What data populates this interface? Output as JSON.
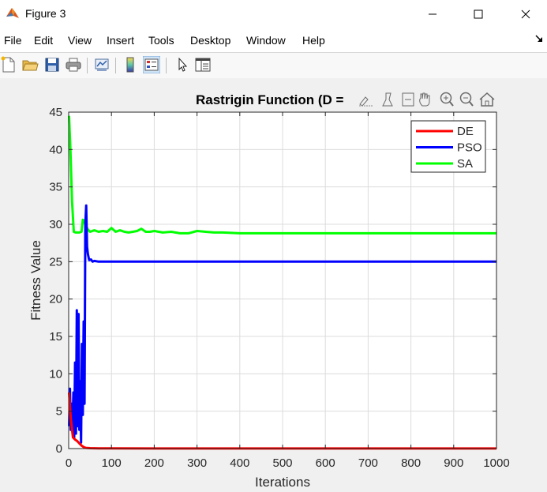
{
  "window": {
    "title": "Figure 3",
    "menu": [
      "File",
      "Edit",
      "View",
      "Insert",
      "Tools",
      "Desktop",
      "Window",
      "Help"
    ]
  },
  "toolbar": {
    "buttons": [
      "new-figure-icon",
      "open-file-icon",
      "save-icon",
      "print-icon",
      "link-plot-icon",
      "insert-colorbar-icon",
      "insert-legend-icon",
      "edit-plot-arrow-icon",
      "property-inspector-icon"
    ]
  },
  "axes_toolbar": {
    "buttons": [
      "brush-data-icon",
      "data-tips-icon",
      "restore-view-icon",
      "pan-icon",
      "zoom-in-icon",
      "zoom-out-icon",
      "home-icon"
    ]
  },
  "chart_data": {
    "type": "line",
    "title": "Rastrigin Function (D =",
    "xlabel": "Iterations",
    "ylabel": "Fitness Value",
    "xlim": [
      0,
      1000
    ],
    "ylim": [
      0,
      45
    ],
    "xticks": [
      0,
      100,
      200,
      300,
      400,
      500,
      600,
      700,
      800,
      900,
      1000
    ],
    "yticks": [
      0,
      5,
      10,
      15,
      20,
      25,
      30,
      35,
      40,
      45
    ],
    "grid": true,
    "legend_position": "top-right",
    "series": [
      {
        "name": "DE",
        "color": "#ff0000",
        "x": [
          1,
          5,
          10,
          15,
          20,
          25,
          30,
          35,
          40,
          50,
          70,
          100,
          200,
          400,
          600,
          800,
          1000
        ],
        "y": [
          7.5,
          4.0,
          1.5,
          1.2,
          1.0,
          0.7,
          0.4,
          0.2,
          0.1,
          0.05,
          0.03,
          0.02,
          0.01,
          0.01,
          0.01,
          0.01,
          0.01
        ]
      },
      {
        "name": "PSO",
        "color": "#0000ff",
        "x": [
          1,
          3,
          5,
          7,
          9,
          11,
          13,
          15,
          17,
          19,
          21,
          23,
          25,
          27,
          29,
          31,
          33,
          35,
          37,
          39,
          41,
          43,
          45,
          48,
          52,
          56,
          60,
          70,
          80,
          100,
          200,
          300,
          500,
          700,
          1000
        ],
        "y": [
          3.0,
          8.0,
          2.5,
          6.0,
          3.0,
          7.5,
          1.5,
          11.5,
          2.0,
          18.5,
          3.0,
          18.0,
          2.5,
          9.0,
          0.8,
          14.0,
          4.5,
          17.0,
          6.0,
          30.0,
          32.5,
          27.0,
          26.0,
          25.2,
          25.3,
          25.0,
          25.1,
          25.0,
          25.0,
          25.0,
          25.0,
          25.0,
          25.0,
          25.0,
          25.0
        ]
      },
      {
        "name": "SA",
        "color": "#00ff00",
        "x": [
          1,
          4,
          8,
          12,
          16,
          20,
          25,
          30,
          33,
          36,
          40,
          45,
          50,
          60,
          70,
          80,
          90,
          100,
          110,
          120,
          130,
          140,
          150,
          160,
          170,
          180,
          190,
          200,
          220,
          240,
          260,
          280,
          300,
          320,
          340,
          360,
          400,
          500,
          600,
          700,
          800,
          900,
          1000
        ],
        "y": [
          44.5,
          40.0,
          33.0,
          29.0,
          28.9,
          28.9,
          28.9,
          29.0,
          30.6,
          30.5,
          29.8,
          29.3,
          29.0,
          29.2,
          29.0,
          29.1,
          29.0,
          29.5,
          29.0,
          29.2,
          29.0,
          28.9,
          29.0,
          29.1,
          29.4,
          29.0,
          29.0,
          29.1,
          28.9,
          29.0,
          28.8,
          28.8,
          29.1,
          29.0,
          28.9,
          28.9,
          28.8,
          28.8,
          28.8,
          28.8,
          28.8,
          28.8,
          28.8
        ]
      }
    ]
  }
}
